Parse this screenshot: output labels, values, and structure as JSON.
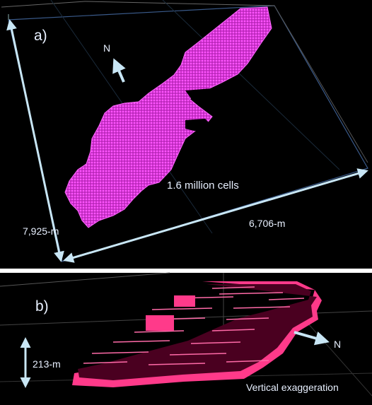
{
  "panel_a": {
    "label": "a)",
    "north": "N",
    "cell_count": "1.6 million cells",
    "dim_left": "7,925-m",
    "dim_bottom": "6,706-m"
  },
  "panel_b": {
    "label": "b)",
    "north": "N",
    "dim_vertical": "213-m",
    "caption": "Vertical exaggeration"
  },
  "colors": {
    "background": "#000000",
    "grid_cells": "#ff40ff",
    "layer_fill": "#ff3a8a",
    "layer_dark": "#4a0020",
    "arrow": "#c8e6f5",
    "box_edges": "#3a5a8a"
  }
}
